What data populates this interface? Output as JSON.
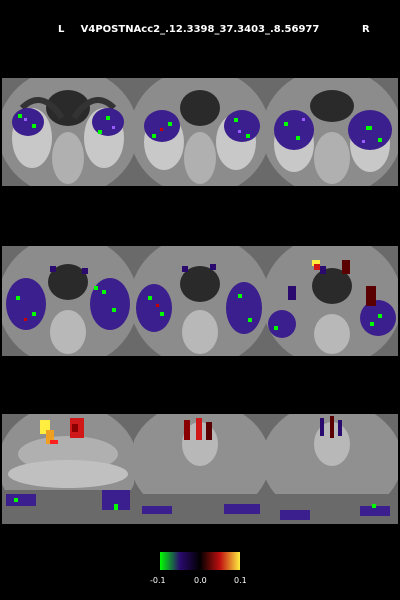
{
  "header": {
    "left_label": "L",
    "title": "V4POSTNAcc2_.12.3398_37.3403_.8.56977",
    "right_label": "R"
  },
  "colorbar": {
    "min_label": "-0.1",
    "mid_label": "0.0",
    "max_label": "0.1",
    "negative_colors": [
      "#00ff00",
      "#2a0a6e",
      "#3b1f8e"
    ],
    "positive_colors": [
      "#5a0000",
      "#d01818",
      "#ffee40"
    ]
  },
  "panels": [
    {
      "row": 0,
      "col": 0
    },
    {
      "row": 0,
      "col": 1
    },
    {
      "row": 0,
      "col": 2
    },
    {
      "row": 1,
      "col": 0
    },
    {
      "row": 1,
      "col": 1
    },
    {
      "row": 1,
      "col": 2
    },
    {
      "row": 2,
      "col": 0
    },
    {
      "row": 2,
      "col": 1
    },
    {
      "row": 2,
      "col": 2
    }
  ]
}
